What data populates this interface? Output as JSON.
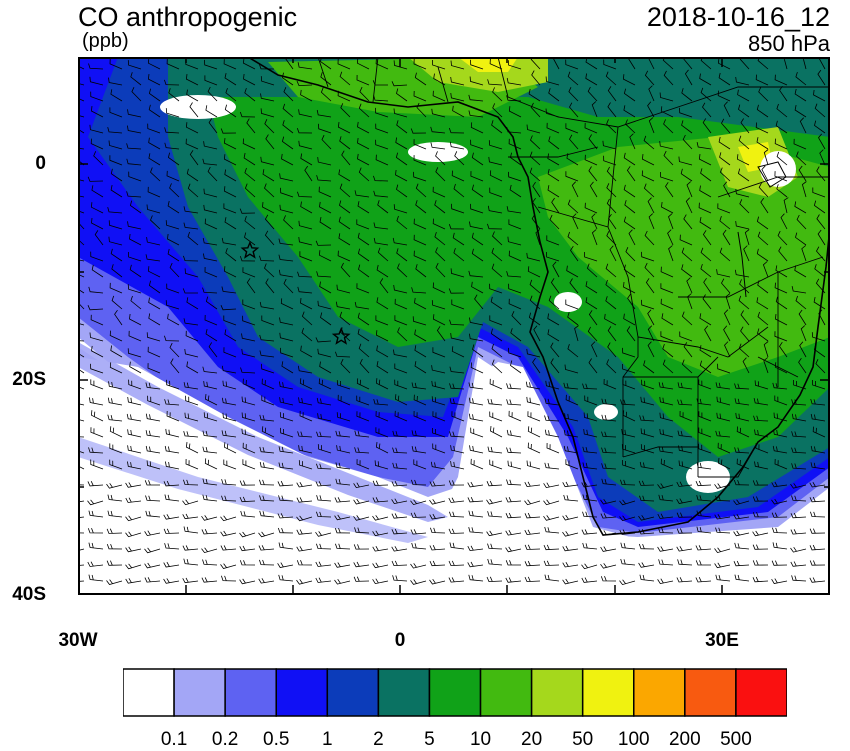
{
  "header": {
    "title": "CO anthropogenic",
    "units": "(ppb)",
    "datetime": "2018-10-16_12",
    "level": "850 hPa"
  },
  "axes": {
    "lat_labels": [
      "0",
      "20S",
      "40S"
    ],
    "lon_labels": [
      "30W",
      "0",
      "30E"
    ]
  },
  "colorbar": {
    "colors": [
      "#ffffff",
      "#a3a6f6",
      "#5e62f2",
      "#1010f5",
      "#0c3cba",
      "#0a7262",
      "#10a218",
      "#42ba10",
      "#a5d81c",
      "#f0f210",
      "#fba700",
      "#f85a10",
      "#fa1010"
    ],
    "labels": [
      "0.1",
      "0.2",
      "0.5",
      "1",
      "2",
      "5",
      "10",
      "20",
      "50",
      "100",
      "200",
      "500"
    ]
  },
  "markers": [
    {
      "name": "star-marker-1",
      "lon": -14,
      "lat": -8
    },
    {
      "name": "star-marker-2",
      "lon": -5.5,
      "lat": -16
    }
  ]
}
